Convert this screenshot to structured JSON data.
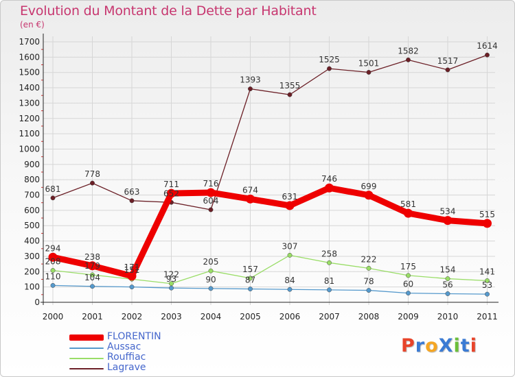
{
  "header": {
    "title": "Evolution du Montant de la Dette par Habitant",
    "subtitle": "(en €)"
  },
  "logo": {
    "text": "ProXiti",
    "colors": [
      "#e8442a",
      "#3b7bd4",
      "#f5a623",
      "#3b7bd4",
      "#6bbf3a",
      "#3b7bd4",
      "#e8442a"
    ]
  },
  "chart_data": {
    "type": "line",
    "x": [
      "2000",
      "2001",
      "2002",
      "2003",
      "2004",
      "2005",
      "2006",
      "2007",
      "2008",
      "2009",
      "2010",
      "2011"
    ],
    "yticks": [
      0,
      100,
      200,
      300,
      400,
      500,
      600,
      700,
      800,
      900,
      1000,
      1100,
      1200,
      1300,
      1400,
      1500,
      1600,
      1700
    ],
    "ylim": [
      0,
      1700
    ],
    "grid": true,
    "legend_position": "bottom-left",
    "series": [
      {
        "name": "Lagrave",
        "color": "#6b1f26",
        "values": [
          681,
          778,
          663,
          652,
          604,
          1393,
          1355,
          1525,
          1501,
          1582,
          1517,
          1614
        ],
        "labels": [
          "681",
          "778",
          "663",
          "652",
          "604",
          "1393",
          "1355",
          "1525",
          "1501",
          "1582",
          "1517",
          "1614"
        ]
      },
      {
        "name": "Rouffiac",
        "color": "#99dd66",
        "values": [
          208,
          179,
          151,
          122,
          205,
          157,
          307,
          258,
          222,
          175,
          154,
          141
        ],
        "labels": [
          "208",
          "179",
          "151",
          "122",
          "205",
          "157",
          "307",
          "258",
          "222",
          "175",
          "154",
          "141"
        ]
      },
      {
        "name": "Aussac",
        "color": "#5599cc",
        "values": [
          110,
          104,
          100,
          93,
          90,
          87,
          84,
          81,
          78,
          60,
          56,
          53
        ],
        "labels": [
          "110",
          "104",
          "",
          "93",
          "90",
          "87",
          "84",
          "81",
          "78",
          "60",
          "56",
          "53"
        ]
      },
      {
        "name": "FLORENTIN",
        "color": "#ee0000",
        "values": [
          294,
          238,
          171,
          711,
          716,
          674,
          631,
          746,
          699,
          581,
          534,
          515
        ],
        "labels": [
          "294",
          "238",
          "171",
          "711",
          "716",
          "674",
          "631",
          "746",
          "699",
          "581",
          "534",
          "515"
        ]
      }
    ],
    "legend": [
      "FLORENTIN",
      "Aussac",
      "Rouffiac",
      "Lagrave"
    ]
  }
}
